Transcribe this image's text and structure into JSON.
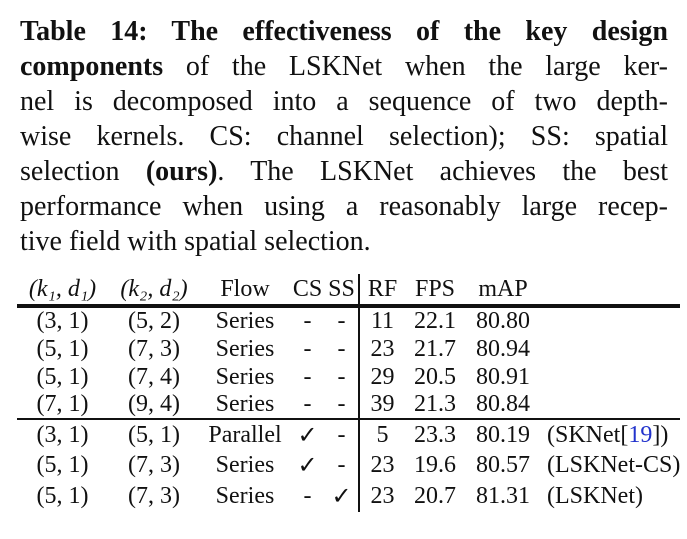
{
  "colors": {
    "background": "#ffffff",
    "text": "#111111",
    "citation_blue": "#2233cc",
    "rule": "#111111"
  },
  "caption": {
    "lines": [
      {
        "segments": [
          {
            "t": "Table 14: The effectiveness of the key design",
            "bold": true
          }
        ]
      },
      {
        "segments": [
          {
            "t": "components",
            "bold": true
          },
          {
            "t": " of the LSKNet when the large ker-",
            "bold": false
          }
        ]
      },
      {
        "segments": [
          {
            "t": "nel is decomposed into a sequence of two depth-",
            "bold": false
          }
        ]
      },
      {
        "segments": [
          {
            "t": "wise kernels. CS: channel selection); SS: spatial",
            "bold": false
          }
        ]
      },
      {
        "segments": [
          {
            "t": "selection ",
            "bold": false
          },
          {
            "t": "(ours)",
            "bold": true
          },
          {
            "t": ". The LSKNet achieves the best",
            "bold": false
          }
        ]
      },
      {
        "segments": [
          {
            "t": "performance when using a reasonably large recep-",
            "bold": false
          }
        ]
      },
      {
        "segments": [
          {
            "t": "tive field with spatial selection.",
            "bold": false
          }
        ]
      }
    ]
  },
  "table": {
    "headers": {
      "c1": "(k₁, d₁)",
      "c2": "(k₂, d₂)",
      "c3": "Flow",
      "c4": "CS",
      "c5": "SS",
      "c6": "RF",
      "c7": "FPS",
      "c8": "mAP",
      "c9": ""
    },
    "rows": [
      {
        "k1": "(3, 1)",
        "k2": "(5, 2)",
        "flow": "Series",
        "cs": "-",
        "ss": "-",
        "rf": "11",
        "fps": "22.1",
        "map": "80.80",
        "note_pre": "",
        "cite": "",
        "note_post": ""
      },
      {
        "k1": "(5, 1)",
        "k2": "(7, 3)",
        "flow": "Series",
        "cs": "-",
        "ss": "-",
        "rf": "23",
        "fps": "21.7",
        "map": "80.94",
        "note_pre": "",
        "cite": "",
        "note_post": ""
      },
      {
        "k1": "(5, 1)",
        "k2": "(7, 4)",
        "flow": "Series",
        "cs": "-",
        "ss": "-",
        "rf": "29",
        "fps": "20.5",
        "map": "80.91",
        "note_pre": "",
        "cite": "",
        "note_post": ""
      },
      {
        "k1": "(7, 1)",
        "k2": "(9, 4)",
        "flow": "Series",
        "cs": "-",
        "ss": "-",
        "rf": "39",
        "fps": "21.3",
        "map": "80.84",
        "note_pre": "",
        "cite": "",
        "note_post": ""
      },
      {
        "k1": "(3, 1)",
        "k2": "(5, 1)",
        "flow": "Parallel",
        "cs": "✓",
        "ss": "-",
        "rf": "5",
        "fps": "23.3",
        "map": "80.19",
        "note_pre": "(SKNet[",
        "cite": "19",
        "note_post": "])"
      },
      {
        "k1": "(5, 1)",
        "k2": "(7, 3)",
        "flow": "Series",
        "cs": "✓",
        "ss": "-",
        "rf": "23",
        "fps": "19.6",
        "map": "80.57",
        "note_pre": "(LSKNet-CS)",
        "cite": "",
        "note_post": ""
      },
      {
        "k1": "(5, 1)",
        "k2": "(7, 3)",
        "flow": "Series",
        "cs": "-",
        "ss": "✓",
        "rf": "23",
        "fps": "20.7",
        "map": "81.31",
        "note_pre": "(LSKNet)",
        "cite": "",
        "note_post": ""
      }
    ]
  }
}
